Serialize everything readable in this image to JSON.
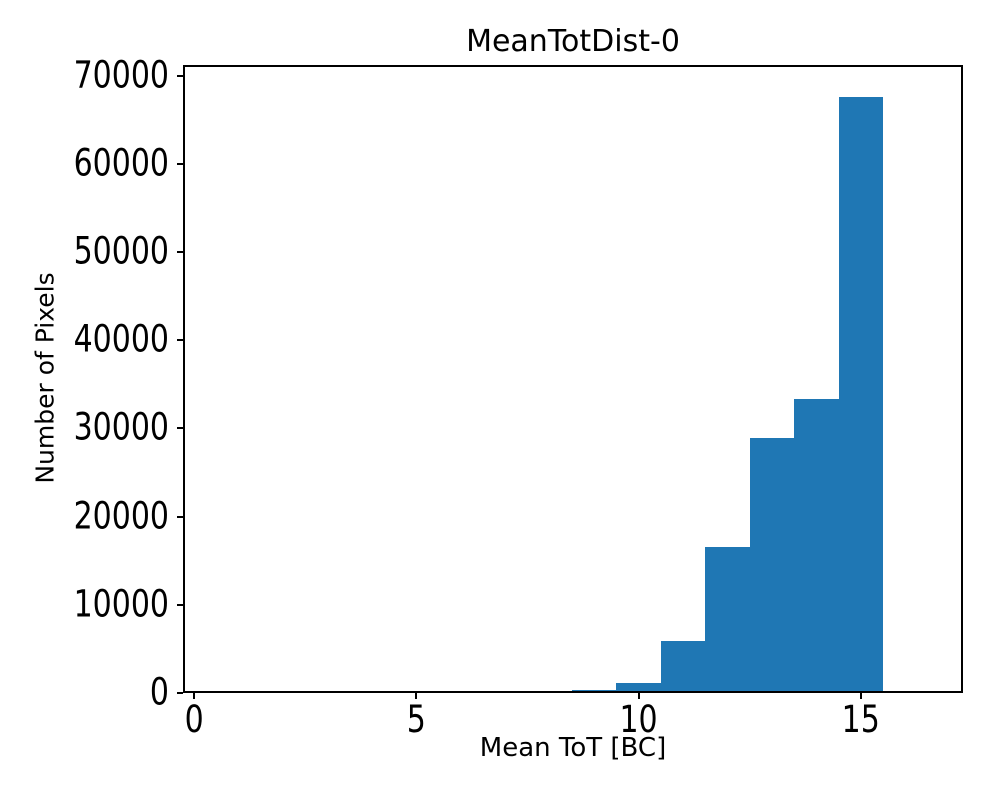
{
  "figure": {
    "background": "#ffffff",
    "text_color": "#000000",
    "spine_color": "#000000"
  },
  "chart_data": {
    "type": "bar",
    "subtype": "histogram",
    "title": "MeanTotDist-0",
    "xlabel": "Mean ToT [BC]",
    "ylabel": "Number of Pixels",
    "bar_color": "#1f77b4",
    "grid": false,
    "legend": null,
    "bin_edges": [
      8.5,
      9.5,
      10.5,
      11.5,
      12.5,
      13.5,
      14.5,
      15.5
    ],
    "counts": [
      300,
      1170,
      5900,
      16600,
      28900,
      33350,
      67600
    ],
    "xlim": [
      -0.25,
      17.3
    ],
    "ylim": [
      0,
      71200
    ],
    "xticks": [
      {
        "value": 0,
        "label": "0"
      },
      {
        "value": 5,
        "label": "5"
      },
      {
        "value": 10,
        "label": "10"
      },
      {
        "value": 15,
        "label": "15"
      }
    ],
    "yticks": [
      {
        "value": 0,
        "label": "0"
      },
      {
        "value": 10000,
        "label": "10000"
      },
      {
        "value": 20000,
        "label": "20000"
      },
      {
        "value": 30000,
        "label": "30000"
      },
      {
        "value": 40000,
        "label": "40000"
      },
      {
        "value": 50000,
        "label": "50000"
      },
      {
        "value": 60000,
        "label": "60000"
      },
      {
        "value": 70000,
        "label": "70000"
      }
    ]
  }
}
